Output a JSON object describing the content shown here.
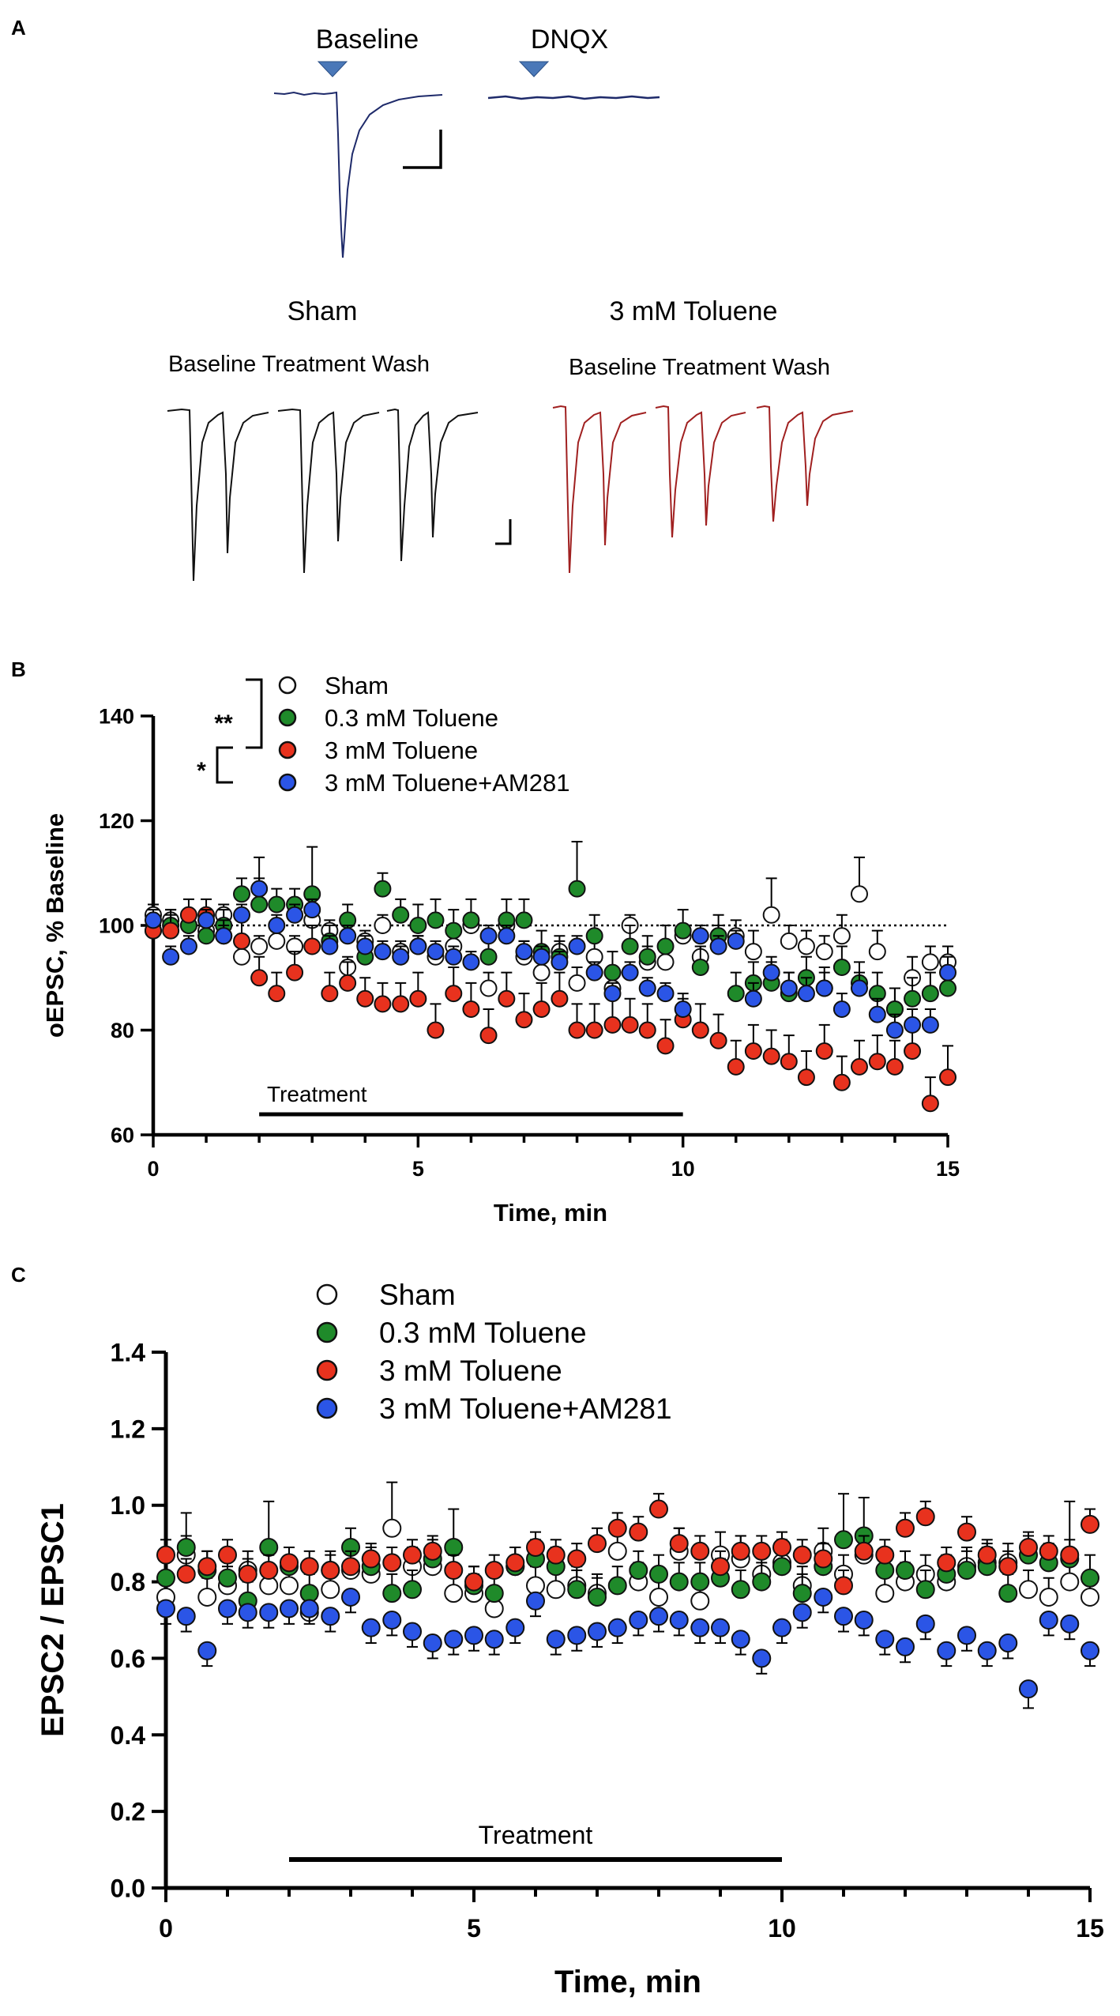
{
  "panels": {
    "a": {
      "letter": "A",
      "baseline_label": "Baseline",
      "dnqx_label": "DNQX",
      "sham_title": "Sham",
      "toluene_title": "3 mM Toluene",
      "sham_sublabels": "Baseline Treatment  Wash",
      "toluene_sublabels": "Baseline Treatment  Wash",
      "colors": {
        "marker": "#4a78b8",
        "trace_dnqx": "#1e2a6a",
        "trace_sham": "#111111",
        "trace_toluene": "#a02020"
      }
    },
    "b": {
      "letter": "B"
    },
    "c": {
      "letter": "C"
    }
  },
  "series_colors": {
    "sham": "#ffffff",
    "toluene_03": "#1f8a2a",
    "toluene_3": "#e8321e",
    "toluene_am281": "#2b55e6"
  },
  "chart_data": [
    {
      "id": "B",
      "type": "scatter",
      "xlabel": "Time, min",
      "ylabel": "oEPSC, % Baseline",
      "xlim": [
        0,
        15
      ],
      "ylim": [
        60,
        140
      ],
      "xticks": [
        0,
        5,
        10,
        15
      ],
      "yticks": [
        60,
        80,
        100,
        120,
        140
      ],
      "reference_line": 100,
      "treatment": {
        "label": "Treatment",
        "start": 2,
        "end": 10
      },
      "significance": [
        {
          "label": "**",
          "between": [
            "Sham",
            "3 mM Toluene"
          ]
        },
        {
          "label": "*",
          "between": [
            "3 mM Toluene",
            "3 mM Toluene+AM281"
          ]
        }
      ],
      "x": [
        0,
        0.33,
        0.67,
        1,
        1.33,
        1.67,
        2,
        2.33,
        2.67,
        3,
        3.33,
        3.67,
        4,
        4.33,
        4.67,
        5,
        5.33,
        5.67,
        6,
        6.33,
        6.67,
        7,
        7.33,
        7.67,
        8,
        8.33,
        8.67,
        9,
        9.33,
        9.67,
        10,
        10.33,
        10.67,
        11,
        11.33,
        11.67,
        12,
        12.33,
        12.67,
        13,
        13.33,
        13.67,
        14,
        14.33,
        14.67,
        15
      ],
      "series": [
        {
          "name": "Sham",
          "key": "sham",
          "values": [
            102,
            101,
            100,
            99,
            102,
            94,
            96,
            97,
            96,
            101,
            99,
            92,
            97,
            100,
            95,
            96,
            94,
            96,
            100,
            88,
            100,
            94,
            91,
            95,
            89,
            94,
            88,
            100,
            93,
            93,
            98,
            94,
            98,
            98,
            95,
            102,
            97,
            96,
            95,
            98,
            106,
            95,
            84,
            90,
            93,
            93
          ],
          "errors": [
            2,
            2,
            2,
            2,
            2,
            2,
            2,
            2,
            2,
            2,
            2,
            2,
            2,
            2,
            2,
            2,
            2,
            2,
            2,
            3,
            2,
            3,
            2,
            2,
            3,
            3,
            3,
            2,
            3,
            3,
            2,
            2,
            2,
            3,
            4,
            7,
            3,
            3,
            3,
            4,
            7,
            4,
            4,
            4,
            3,
            3
          ]
        },
        {
          "name": "0.3 mM Toluene",
          "key": "toluene_03",
          "values": [
            99,
            100,
            100,
            98,
            100,
            106,
            104,
            104,
            104,
            106,
            97,
            101,
            94,
            107,
            102,
            100,
            101,
            99,
            101,
            94,
            101,
            101,
            95,
            94,
            107,
            98,
            91,
            96,
            94,
            96,
            99,
            92,
            98,
            87,
            89,
            89,
            87,
            90,
            88,
            92,
            89,
            87,
            84,
            86,
            87,
            88
          ],
          "errors": [
            3,
            3,
            3,
            3,
            3,
            3,
            9,
            3,
            3,
            9,
            3,
            3,
            3,
            3,
            3,
            4,
            4,
            4,
            4,
            4,
            4,
            4,
            4,
            4,
            9,
            4,
            4,
            4,
            4,
            4,
            4,
            4,
            4,
            4,
            4,
            4,
            4,
            4,
            4,
            4,
            4,
            4,
            4,
            4,
            4,
            4
          ]
        },
        {
          "name": "3 mM Toluene",
          "key": "toluene_3",
          "values": [
            99,
            99,
            102,
            102,
            98,
            97,
            90,
            87,
            91,
            96,
            87,
            89,
            86,
            85,
            85,
            86,
            80,
            87,
            84,
            79,
            86,
            82,
            84,
            86,
            80,
            80,
            81,
            81,
            80,
            77,
            82,
            80,
            78,
            73,
            76,
            75,
            74,
            71,
            76,
            70,
            73,
            74,
            73,
            76,
            66,
            71
          ],
          "errors": [
            3,
            3,
            3,
            3,
            3,
            4,
            4,
            4,
            4,
            4,
            4,
            4,
            4,
            4,
            4,
            5,
            5,
            5,
            5,
            5,
            5,
            5,
            5,
            5,
            5,
            5,
            5,
            5,
            5,
            5,
            5,
            5,
            5,
            5,
            5,
            5,
            5,
            5,
            5,
            5,
            5,
            5,
            5,
            5,
            5,
            6
          ]
        },
        {
          "name": "3 mM Toluene+AM281",
          "key": "toluene_am281",
          "values": [
            101,
            94,
            96,
            101,
            98,
            102,
            107,
            100,
            102,
            103,
            96,
            98,
            96,
            95,
            94,
            96,
            95,
            94,
            93,
            98,
            98,
            95,
            94,
            93,
            96,
            91,
            87,
            91,
            88,
            87,
            84,
            98,
            96,
            97,
            86,
            91,
            88,
            87,
            88,
            84,
            88,
            83,
            80,
            81,
            81,
            91
          ],
          "errors": [
            2,
            2,
            2,
            2,
            2,
            2,
            2,
            2,
            2,
            2,
            2,
            2,
            2,
            2,
            2,
            2,
            2,
            2,
            2,
            2,
            2,
            2,
            2,
            2,
            2,
            2,
            2,
            2,
            2,
            2,
            2,
            2,
            2,
            2,
            3,
            3,
            3,
            3,
            3,
            3,
            3,
            3,
            3,
            3,
            3,
            3
          ]
        }
      ]
    },
    {
      "id": "C",
      "type": "scatter",
      "xlabel": "Time, min",
      "ylabel": "EPSC2 / EPSC1",
      "xlim": [
        0,
        15
      ],
      "ylim": [
        0.0,
        1.4
      ],
      "xticks": [
        0,
        5,
        10,
        15
      ],
      "yticks": [
        "0.0",
        "0.2",
        "0.4",
        "0.6",
        "0.8",
        "1.0",
        "1.2",
        "1.4"
      ],
      "treatment": {
        "label": "Treatment",
        "start": 2,
        "end": 10
      },
      "x": [
        0,
        0.33,
        0.67,
        1,
        1.33,
        1.67,
        2,
        2.33,
        2.67,
        3,
        3.33,
        3.67,
        4,
        4.33,
        4.67,
        5,
        5.33,
        5.67,
        6,
        6.33,
        6.67,
        7,
        7.33,
        7.67,
        8,
        8.33,
        8.67,
        9,
        9.33,
        9.67,
        10,
        10.33,
        10.67,
        11,
        11.33,
        11.67,
        12,
        12.33,
        12.67,
        13,
        13.33,
        13.67,
        14,
        14.33,
        14.67,
        15
      ],
      "series": [
        {
          "name": "Sham",
          "key": "sham",
          "values": [
            0.76,
            0.87,
            0.76,
            0.79,
            0.83,
            0.79,
            0.79,
            0.72,
            0.78,
            0.83,
            0.82,
            0.94,
            0.84,
            0.84,
            0.77,
            0.77,
            0.73,
            0.84,
            0.79,
            0.78,
            0.79,
            0.77,
            0.88,
            0.8,
            0.76,
            0.88,
            0.75,
            0.87,
            0.86,
            0.82,
            0.85,
            0.79,
            0.88,
            0.82,
            0.87,
            0.77,
            0.8,
            0.82,
            0.8,
            0.84,
            0.85,
            0.85,
            0.78,
            0.76,
            0.8,
            0.76
          ],
          "errors": [
            0.05,
            0.05,
            0.05,
            0.05,
            0.05,
            0.05,
            0.05,
            0.05,
            0.05,
            0.05,
            0.05,
            0.12,
            0.05,
            0.05,
            0.05,
            0.05,
            0.05,
            0.05,
            0.05,
            0.05,
            0.05,
            0.05,
            0.06,
            0.05,
            0.05,
            0.06,
            0.05,
            0.06,
            0.06,
            0.05,
            0.06,
            0.05,
            0.06,
            0.05,
            0.06,
            0.05,
            0.05,
            0.05,
            0.05,
            0.05,
            0.05,
            0.05,
            0.05,
            0.05,
            0.05,
            0.05
          ]
        },
        {
          "name": "0.3 mM Toluene",
          "key": "toluene_03",
          "values": [
            0.81,
            0.89,
            0.83,
            0.81,
            0.75,
            0.89,
            0.84,
            0.77,
            0.83,
            0.89,
            0.84,
            0.77,
            0.78,
            0.86,
            0.89,
            0.79,
            0.77,
            0.84,
            0.86,
            0.84,
            0.78,
            0.76,
            0.79,
            0.83,
            0.82,
            0.8,
            0.8,
            0.81,
            0.78,
            0.8,
            0.84,
            0.77,
            0.84,
            0.91,
            0.92,
            0.83,
            0.83,
            0.78,
            0.82,
            0.83,
            0.84,
            0.77,
            0.87,
            0.85,
            0.86,
            0.81
          ],
          "errors": [
            0.05,
            0.09,
            0.05,
            0.05,
            0.05,
            0.12,
            0.05,
            0.05,
            0.05,
            0.05,
            0.05,
            0.05,
            0.05,
            0.05,
            0.1,
            0.05,
            0.05,
            0.05,
            0.05,
            0.05,
            0.05,
            0.05,
            0.05,
            0.05,
            0.05,
            0.05,
            0.05,
            0.05,
            0.05,
            0.05,
            0.05,
            0.05,
            0.06,
            0.12,
            0.1,
            0.05,
            0.05,
            0.05,
            0.05,
            0.05,
            0.05,
            0.05,
            0.05,
            0.05,
            0.15,
            0.06
          ]
        },
        {
          "name": "3 mM Toluene",
          "key": "toluene_3",
          "values": [
            0.87,
            0.82,
            0.84,
            0.87,
            0.82,
            0.83,
            0.85,
            0.84,
            0.83,
            0.84,
            0.86,
            0.85,
            0.87,
            0.88,
            0.83,
            0.8,
            0.83,
            0.85,
            0.89,
            0.87,
            0.86,
            0.9,
            0.94,
            0.93,
            0.99,
            0.9,
            0.88,
            0.84,
            0.88,
            0.88,
            0.89,
            0.87,
            0.86,
            0.79,
            0.88,
            0.87,
            0.94,
            0.97,
            0.85,
            0.93,
            0.87,
            0.84,
            0.89,
            0.88,
            0.87,
            0.95
          ],
          "errors": [
            0.04,
            0.04,
            0.04,
            0.04,
            0.04,
            0.04,
            0.04,
            0.04,
            0.04,
            0.04,
            0.04,
            0.04,
            0.04,
            0.04,
            0.04,
            0.04,
            0.04,
            0.04,
            0.04,
            0.04,
            0.04,
            0.04,
            0.04,
            0.04,
            0.04,
            0.04,
            0.04,
            0.04,
            0.04,
            0.04,
            0.04,
            0.04,
            0.04,
            0.04,
            0.04,
            0.04,
            0.04,
            0.04,
            0.04,
            0.04,
            0.04,
            0.04,
            0.04,
            0.04,
            0.04,
            0.04
          ]
        },
        {
          "name": "3 mM Toluene+AM281",
          "key": "toluene_am281",
          "values": [
            0.73,
            0.71,
            0.62,
            0.73,
            0.72,
            0.72,
            0.73,
            0.73,
            0.71,
            0.76,
            0.68,
            0.7,
            0.67,
            0.64,
            0.65,
            0.66,
            0.65,
            0.68,
            0.75,
            0.65,
            0.66,
            0.67,
            0.68,
            0.7,
            0.71,
            0.7,
            0.68,
            0.68,
            0.65,
            0.6,
            0.68,
            0.72,
            0.76,
            0.71,
            0.7,
            0.65,
            0.63,
            0.69,
            0.62,
            0.66,
            0.62,
            0.64,
            0.52,
            0.7,
            0.69,
            0.62
          ],
          "errors": [
            0.04,
            0.04,
            0.04,
            0.04,
            0.04,
            0.04,
            0.04,
            0.04,
            0.04,
            0.04,
            0.04,
            0.04,
            0.04,
            0.04,
            0.04,
            0.04,
            0.04,
            0.04,
            0.04,
            0.04,
            0.04,
            0.04,
            0.04,
            0.04,
            0.04,
            0.04,
            0.04,
            0.04,
            0.04,
            0.04,
            0.04,
            0.04,
            0.04,
            0.04,
            0.04,
            0.04,
            0.04,
            0.04,
            0.04,
            0.04,
            0.04,
            0.04,
            0.05,
            0.04,
            0.04,
            0.04
          ]
        }
      ]
    }
  ]
}
